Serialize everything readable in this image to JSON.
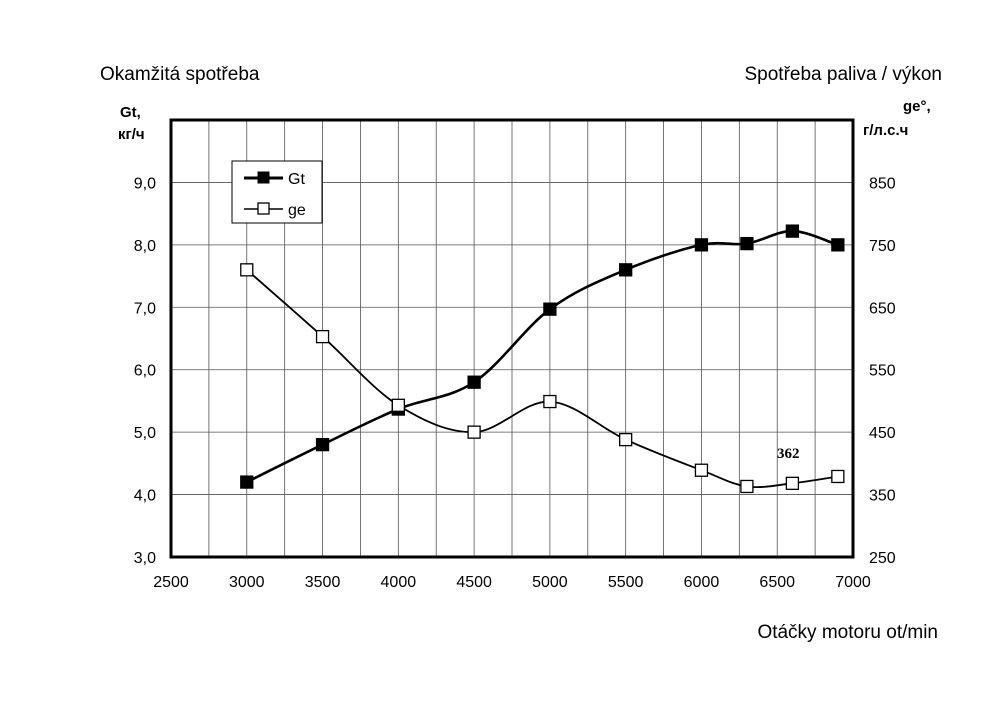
{
  "headers": {
    "left": "Okamžitá spotřeba",
    "right": "Spotřeba paliva / výkon",
    "bottom": "Otáčky motoru ot/min"
  },
  "chart_data": {
    "type": "line",
    "xlabel": "Otáčky motoru ot/min",
    "ylabel_left": {
      "line1": "Gt,",
      "line2": "кг/ч"
    },
    "ylabel_right": {
      "line1": "ge°,",
      "line2": "г/л.с.ч"
    },
    "xlim": [
      2500,
      7000
    ],
    "ylim_left": [
      3.0,
      10.0
    ],
    "ylim_right": [
      250,
      950
    ],
    "x_ticks": [
      "2500",
      "3000",
      "3500",
      "4000",
      "4500",
      "5000",
      "5500",
      "6000",
      "6500",
      "7000"
    ],
    "y_left_ticks": [
      "3,0",
      "4,0",
      "5,0",
      "6,0",
      "7,0",
      "8,0",
      "9,0"
    ],
    "y_right_ticks": [
      "250",
      "350",
      "450",
      "550",
      "650",
      "750",
      "850"
    ],
    "grid": true,
    "legend_position": "top-left",
    "series": [
      {
        "name": "Gt",
        "axis": "left",
        "marker": "filled-square",
        "points": [
          [
            3000,
            4.2
          ],
          [
            3500,
            4.8
          ],
          [
            4000,
            5.37
          ],
          [
            4500,
            5.8
          ],
          [
            5000,
            6.97
          ],
          [
            5500,
            7.6
          ],
          [
            6000,
            8.0
          ],
          [
            6300,
            8.02
          ],
          [
            6600,
            8.22
          ],
          [
            6900,
            8.0
          ]
        ]
      },
      {
        "name": "ge",
        "axis": "right",
        "marker": "open-square",
        "points": [
          [
            3000,
            710
          ],
          [
            3500,
            603
          ],
          [
            4000,
            493
          ],
          [
            4500,
            450
          ],
          [
            5000,
            499
          ],
          [
            5500,
            438
          ],
          [
            6000,
            389
          ],
          [
            6300,
            363
          ],
          [
            6600,
            368
          ],
          [
            6900,
            379
          ]
        ]
      }
    ],
    "annotations": [
      {
        "text": "362",
        "x": 6600,
        "y_right": 420
      }
    ]
  }
}
